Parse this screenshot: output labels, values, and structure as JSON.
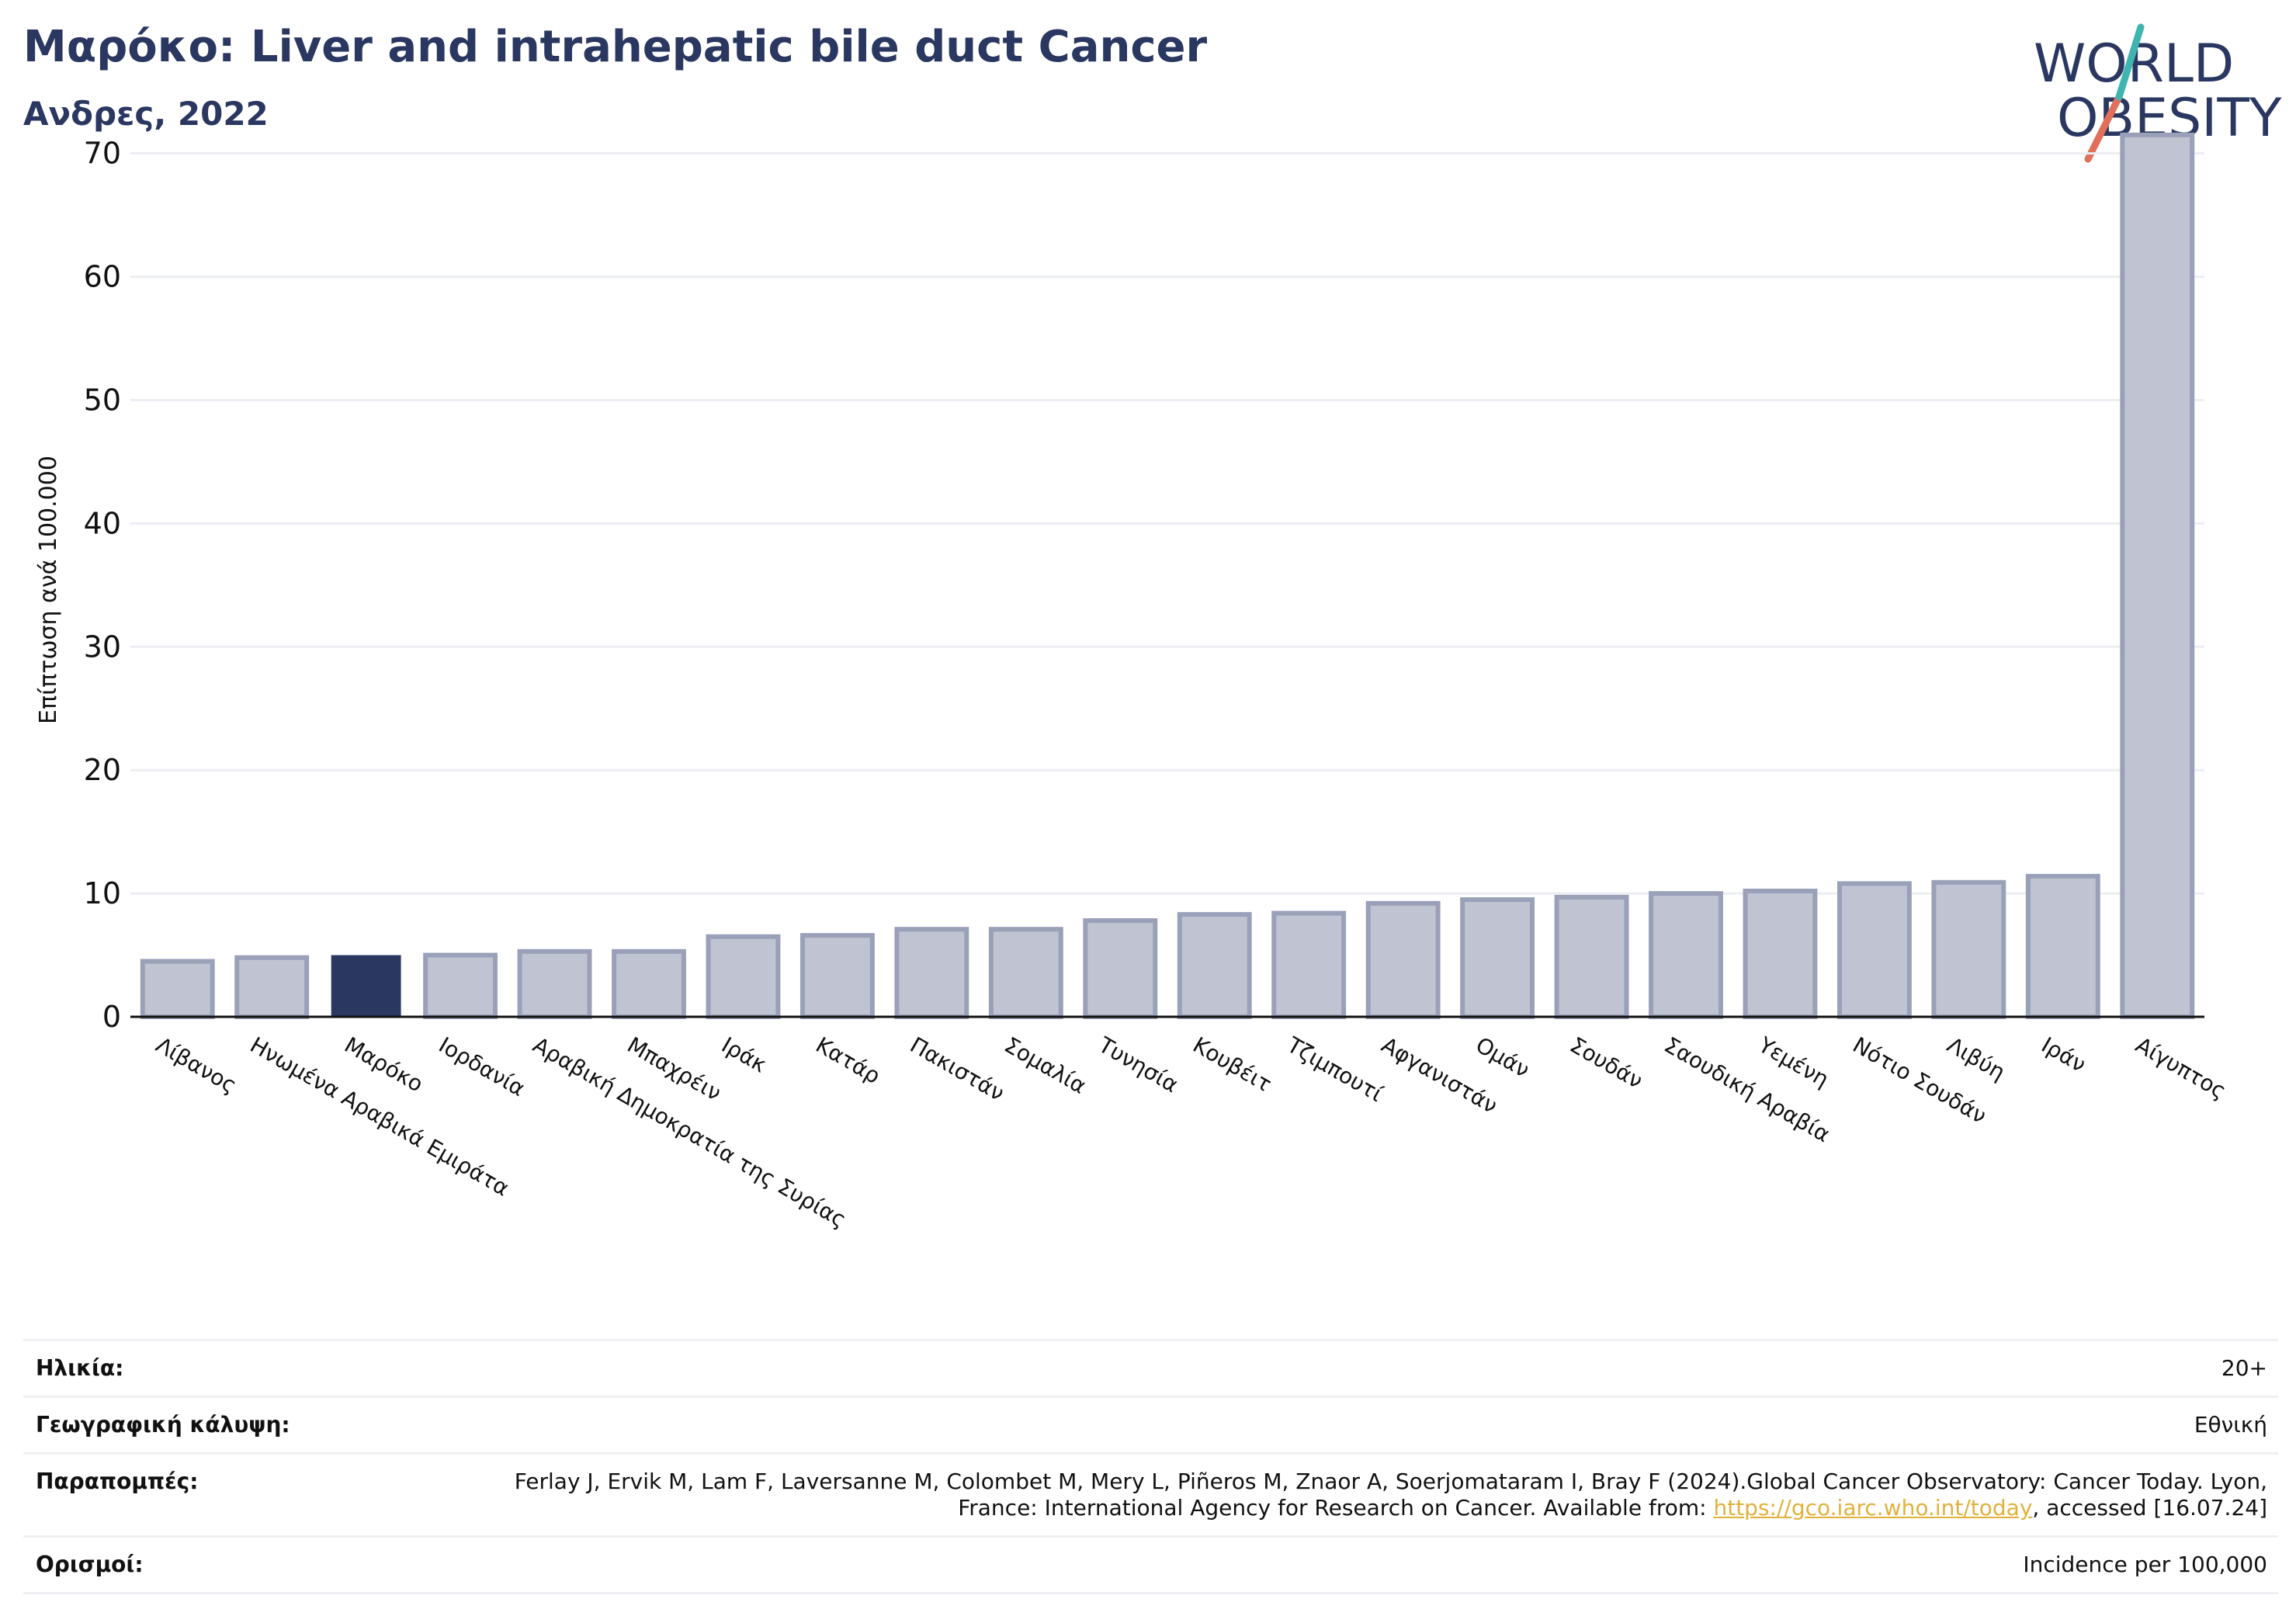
{
  "header": {
    "title": "Μαρόκο: Liver and intrahepatic bile duct Cancer",
    "subtitle": "Ανδρες, 2022"
  },
  "logo": {
    "line1": "WORLD",
    "line2": "OBESITY"
  },
  "colors": {
    "highlight": "#2a3761",
    "bar": "#c0c3d1",
    "bar_stroke": "#9aa0b8",
    "grid": "#eceef3",
    "title": "#2a3761"
  },
  "chart_data": {
    "type": "bar",
    "ylabel": "Επίπτωση ανά 100.000",
    "ylim": [
      0,
      73
    ],
    "yticks": [
      0,
      10,
      20,
      30,
      40,
      50,
      60,
      70
    ],
    "grid": true,
    "highlight": "Μαρόκο",
    "categories": [
      "Λίβανος",
      "Ηνωμένα Αραβικά Εμιράτα",
      "Μαρόκο",
      "Ιορδανία",
      "Αραβική Δημοκρατία της Συρίας",
      "Μπαχρέιν",
      "Ιράκ",
      "Κατάρ",
      "Πακιστάν",
      "Σομαλία",
      "Τυνησία",
      "Κουβέιτ",
      "Τζιμπουτί",
      "Αφγανιστάν",
      "Ομάν",
      "Σουδάν",
      "Σαουδική Αραβία",
      "Υεμένη",
      "Νότιο Σουδάν",
      "Λιβύη",
      "Ιράν",
      "Αίγυπτος"
    ],
    "values": [
      4.5,
      4.8,
      5.0,
      5.0,
      5.3,
      5.3,
      6.5,
      6.6,
      7.1,
      7.1,
      7.8,
      8.3,
      8.4,
      9.2,
      9.5,
      9.7,
      10.0,
      10.2,
      10.8,
      10.9,
      11.4,
      71.5
    ]
  },
  "info": {
    "age_label": "Ηλικία:",
    "age_value": "20+",
    "coverage_label": "Γεωγραφική κάλυψη:",
    "coverage_value": "Εθνική",
    "refs_label": "Παραπομπές:",
    "refs_text_1": "Ferlay J, Ervik M, Lam F, Laversanne M, Colombet M, Mery L, Piñeros M, Znaor A, Soerjomataram I, Bray F (2024).Global Cancer Observatory: Cancer Today. Lyon, France: International Agency for Research on Cancer. Available from: ",
    "refs_link": "https://gco.iarc.who.int/today",
    "refs_text_2": ", accessed [16.07.24]",
    "definitions_label": "Ορισμοί:",
    "definitions_value": "Incidence per 100,000"
  }
}
